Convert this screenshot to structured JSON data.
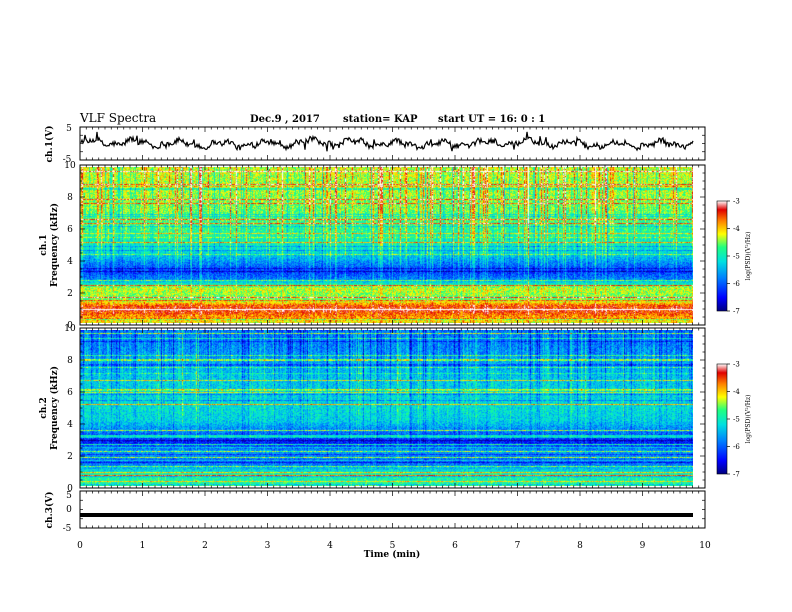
{
  "header": {
    "title": "VLF Spectra",
    "date": "Dec.9  , 2017",
    "station": "station= KAP",
    "start_ut": "start  UT =  16: 0  : 1"
  },
  "colors": {
    "stops": [
      "#00007f",
      "#0000ff",
      "#0080ff",
      "#00e0e0",
      "#20ff80",
      "#ffff00",
      "#ff8000",
      "#e00000",
      "#ffffff"
    ]
  },
  "chart_data": [
    {
      "type": "line",
      "panel": "ch1-waveform",
      "ylabel": "ch.1(V)",
      "ylim": [
        -5,
        5
      ],
      "yticks": [
        "5",
        "-5"
      ],
      "xlim": [
        0,
        9.8
      ],
      "trace": "noisy waveform oscillating roughly between -1.5 V and +1.5 V with slow undulations"
    },
    {
      "type": "heatmap",
      "panel": "ch1-spectrogram",
      "ylabel": "ch.1\nFrequency (kHz)",
      "ylabel_lines": [
        "ch.1",
        "Frequency  (kHz)"
      ],
      "ylim": [
        0,
        10
      ],
      "yticks": [
        "0",
        "2",
        "4",
        "6",
        "8",
        "10"
      ],
      "xlim": [
        0,
        9.8
      ],
      "colorbar": {
        "label": "log(PSD)(V²/Hz)",
        "range": [
          -7,
          -3
        ],
        "ticks": [
          "-3",
          "-4",
          "-5",
          "-6",
          "-7"
        ]
      },
      "profile_db": [
        [
          0,
          -4.2
        ],
        [
          0.8,
          -3.4
        ],
        [
          1.1,
          -3.6
        ],
        [
          1.5,
          -4.6
        ],
        [
          2.2,
          -4.3
        ],
        [
          2.8,
          -5.8
        ],
        [
          3.3,
          -6.2
        ],
        [
          3.8,
          -5.8
        ],
        [
          4.5,
          -5.2
        ],
        [
          5.5,
          -4.9
        ],
        [
          7,
          -4.6
        ],
        [
          8.5,
          -4.4
        ],
        [
          10,
          -4.3
        ]
      ],
      "sferic_intensity": 1.0
    },
    {
      "type": "heatmap",
      "panel": "ch2-spectrogram",
      "ylabel": "ch.2\nFrequency (kHz)",
      "ylabel_lines": [
        "ch.2",
        "Frequency  (kHz)"
      ],
      "ylim": [
        0,
        10
      ],
      "yticks": [
        "0",
        "2",
        "4",
        "6",
        "8",
        "10"
      ],
      "xlim": [
        0,
        9.8
      ],
      "colorbar": {
        "label": "log(PSD)(V²/Hz)",
        "range": [
          -7,
          -3
        ],
        "ticks": [
          "-3",
          "-4",
          "-5",
          "-6",
          "-7"
        ]
      },
      "profile_db": [
        [
          0,
          -4.8
        ],
        [
          0.8,
          -5.0
        ],
        [
          1.5,
          -6.0
        ],
        [
          2.2,
          -5.6
        ],
        [
          2.8,
          -6.4
        ],
        [
          3.4,
          -5.9
        ],
        [
          4.2,
          -5.3
        ],
        [
          5.0,
          -5.2
        ],
        [
          6.0,
          -5.3
        ],
        [
          7.0,
          -5.4
        ],
        [
          8.0,
          -5.6
        ],
        [
          9.0,
          -5.8
        ],
        [
          10,
          -5.9
        ]
      ],
      "sferic_intensity": 0.45
    },
    {
      "type": "line",
      "panel": "ch3-waveform",
      "ylabel": "ch.3(V)",
      "ylim": [
        -5,
        5
      ],
      "yticks": [
        "5",
        "0",
        "-5"
      ],
      "xlim": [
        0,
        9.8
      ],
      "constant_value": -1.5
    }
  ],
  "xaxis": {
    "label": "Time  (min)",
    "range": [
      0,
      10
    ],
    "ticks": [
      "0",
      "1",
      "2",
      "3",
      "4",
      "5",
      "6",
      "7",
      "8",
      "9",
      "10"
    ]
  }
}
